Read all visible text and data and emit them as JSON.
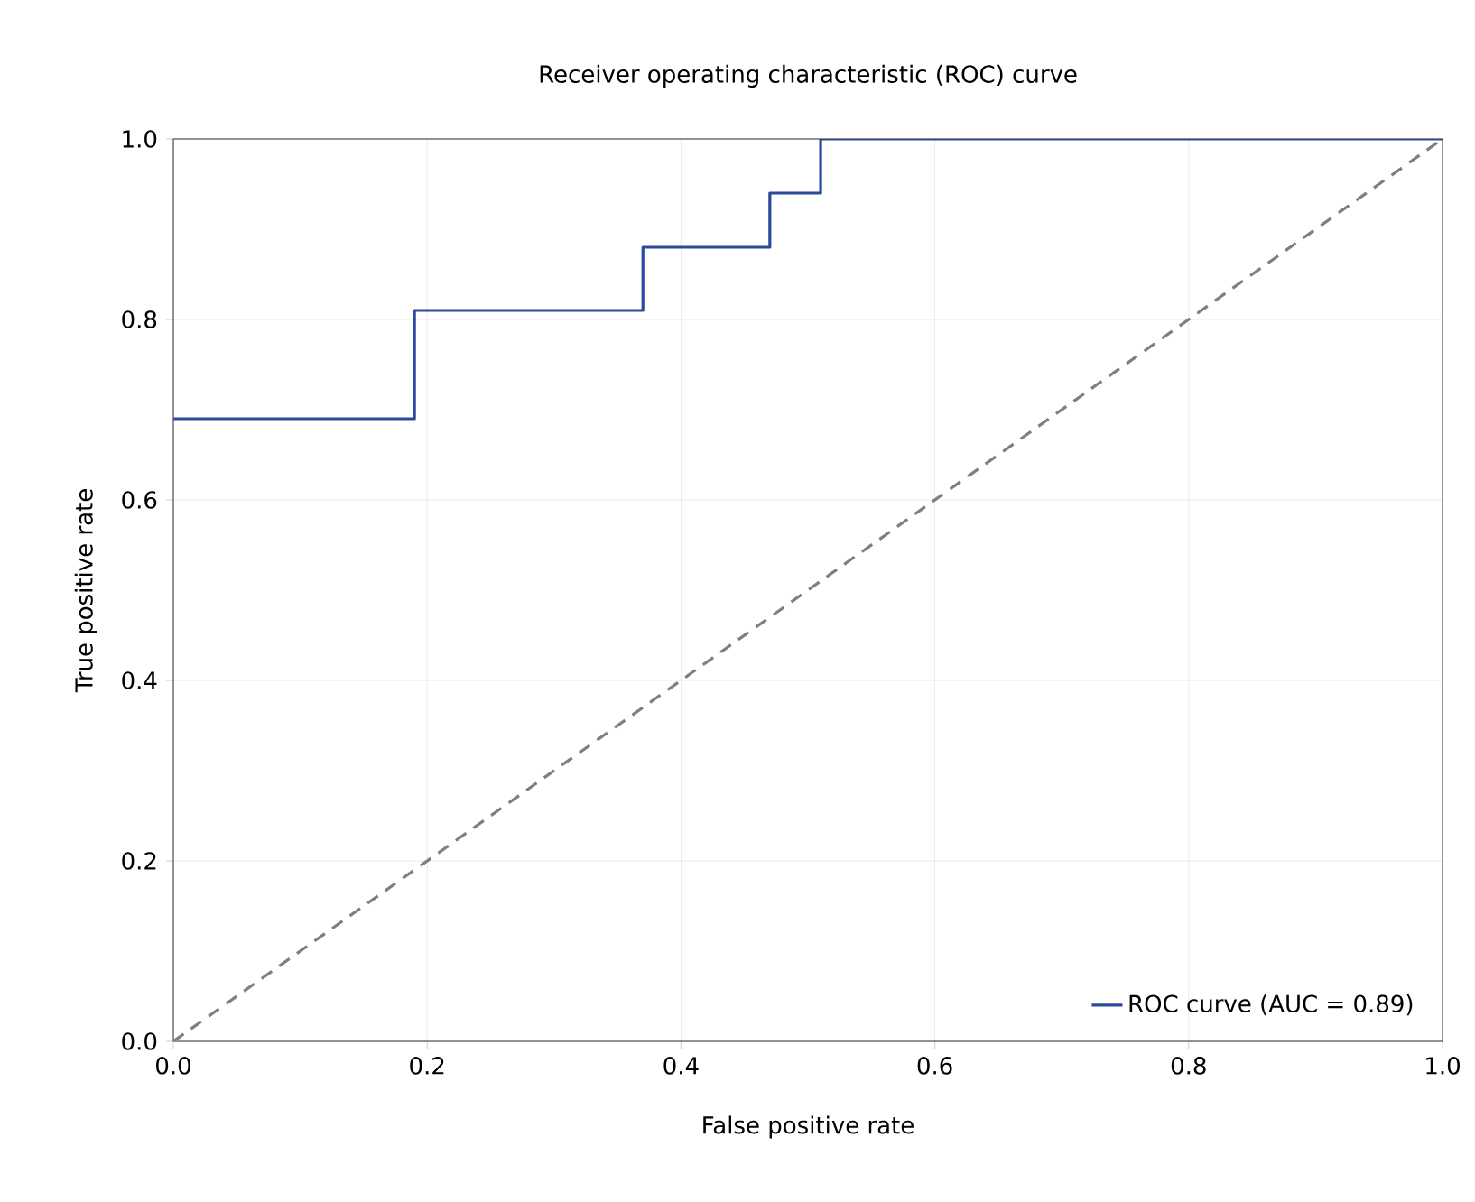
{
  "chart_data": {
    "type": "line",
    "title": "Receiver operating characteristic (ROC) curve",
    "xlabel": "False positive rate",
    "ylabel": "True positive rate",
    "series": [
      {
        "name": "ROC curve (AUC = 0.89)",
        "type": "step",
        "color": "#2a4a9c",
        "line_style": "solid",
        "x": [
          0,
          0.19,
          0.37,
          0.47,
          0.51,
          1
        ],
        "values": [
          0.69,
          0.81,
          0.88,
          0.94,
          1,
          1
        ]
      },
      {
        "type": "line",
        "color": "#7f7f7f",
        "line_style": "dashed",
        "x": [
          0,
          1
        ],
        "values": [
          0,
          1
        ]
      }
    ],
    "xlim": [
      0,
      1
    ],
    "ylim": [
      0,
      1
    ],
    "xticks": [
      {
        "value": 0,
        "label": "0.0"
      },
      {
        "value": 0.2,
        "label": "0.2"
      },
      {
        "value": 0.4,
        "label": "0.4"
      },
      {
        "value": 0.6,
        "label": "0.6"
      },
      {
        "value": 0.8,
        "label": "0.8"
      },
      {
        "value": 1,
        "label": "1.0"
      }
    ],
    "yticks": [
      {
        "value": 0,
        "label": "0.0"
      },
      {
        "value": 0.2,
        "label": "0.2"
      },
      {
        "value": 0.4,
        "label": "0.4"
      },
      {
        "value": 0.6,
        "label": "0.6"
      },
      {
        "value": 0.8,
        "label": "0.8"
      },
      {
        "value": 1,
        "label": "1.0"
      }
    ],
    "grid": true,
    "legend": "bottom right",
    "marker": "none"
  }
}
